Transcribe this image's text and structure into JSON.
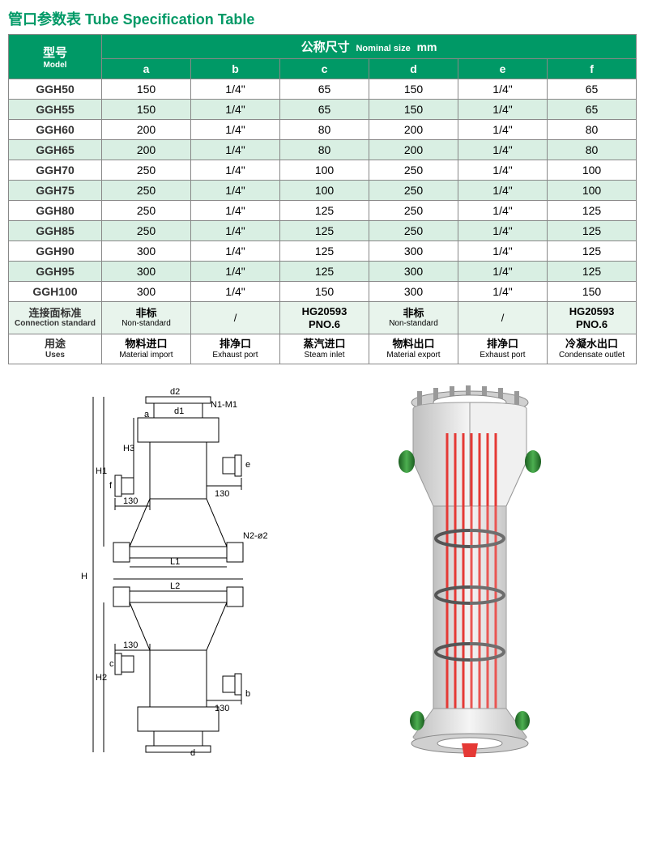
{
  "title": "管口参数表 Tube Specification Table",
  "header": {
    "model_cn": "型号",
    "model_en": "Model",
    "nominal_cn": "公称尺寸",
    "nominal_en": "Nominal size",
    "nominal_unit": "mm",
    "cols": [
      "a",
      "b",
      "c",
      "d",
      "e",
      "f"
    ]
  },
  "rows": [
    {
      "model": "GGH50",
      "a": "150",
      "b": "1/4\"",
      "c": "65",
      "d": "150",
      "e": "1/4\"",
      "f": "65"
    },
    {
      "model": "GGH55",
      "a": "150",
      "b": "1/4\"",
      "c": "65",
      "d": "150",
      "e": "1/4\"",
      "f": "65"
    },
    {
      "model": "GGH60",
      "a": "200",
      "b": "1/4\"",
      "c": "80",
      "d": "200",
      "e": "1/4\"",
      "f": "80"
    },
    {
      "model": "GGH65",
      "a": "200",
      "b": "1/4\"",
      "c": "80",
      "d": "200",
      "e": "1/4\"",
      "f": "80"
    },
    {
      "model": "GGH70",
      "a": "250",
      "b": "1/4\"",
      "c": "100",
      "d": "250",
      "e": "1/4\"",
      "f": "100"
    },
    {
      "model": "GGH75",
      "a": "250",
      "b": "1/4\"",
      "c": "100",
      "d": "250",
      "e": "1/4\"",
      "f": "100"
    },
    {
      "model": "GGH80",
      "a": "250",
      "b": "1/4\"",
      "c": "125",
      "d": "250",
      "e": "1/4\"",
      "f": "125"
    },
    {
      "model": "GGH85",
      "a": "250",
      "b": "1/4\"",
      "c": "125",
      "d": "250",
      "e": "1/4\"",
      "f": "125"
    },
    {
      "model": "GGH90",
      "a": "300",
      "b": "1/4\"",
      "c": "125",
      "d": "300",
      "e": "1/4\"",
      "f": "125"
    },
    {
      "model": "GGH95",
      "a": "300",
      "b": "1/4\"",
      "c": "125",
      "d": "300",
      "e": "1/4\"",
      "f": "125"
    },
    {
      "model": "GGH100",
      "a": "300",
      "b": "1/4\"",
      "c": "150",
      "d": "300",
      "e": "1/4\"",
      "f": "150"
    }
  ],
  "connection": {
    "label_cn": "连接面标准",
    "label_en": "Connection standard",
    "a_cn": "非标",
    "a_en": "Non-standard",
    "b": "/",
    "c_l1": "HG20593",
    "c_l2": "PNO.6",
    "d_cn": "非标",
    "d_en": "Non-standard",
    "e": "/",
    "f_l1": "HG20593",
    "f_l2": "PNO.6"
  },
  "uses": {
    "label_cn": "用途",
    "label_en": "Uses",
    "a_cn": "物料进口",
    "a_en": "Material import",
    "b_cn": "排净口",
    "b_en": "Exhaust port",
    "c_cn": "蒸汽进口",
    "c_en": "Steam inlet",
    "d_cn": "物料出口",
    "d_en": "Material export",
    "e_cn": "排净口",
    "e_en": "Exhaust port",
    "f_cn": "冷凝水出口",
    "f_en": "Condensate outlet"
  },
  "diagram_labels": {
    "d1": "d1",
    "d2": "d2",
    "a": "a",
    "n1m1": "N1-M1",
    "e": "e",
    "f": "f",
    "h1": "H1",
    "h2": "H2",
    "h3": "H3",
    "h": "H",
    "l1": "L1",
    "l2": "L2",
    "n2": "N2-ø2",
    "b": "b",
    "c": "c",
    "d": "d",
    "v130": "130"
  },
  "colors": {
    "brand": "#009966",
    "row_even": "#d9efe3",
    "row_odd": "#ffffff",
    "footer_bg": "#e8f4ec",
    "border": "#888888",
    "render_body": "#e8e8e8",
    "render_tubes": "#e53935",
    "render_flange": "#2e7d32"
  }
}
